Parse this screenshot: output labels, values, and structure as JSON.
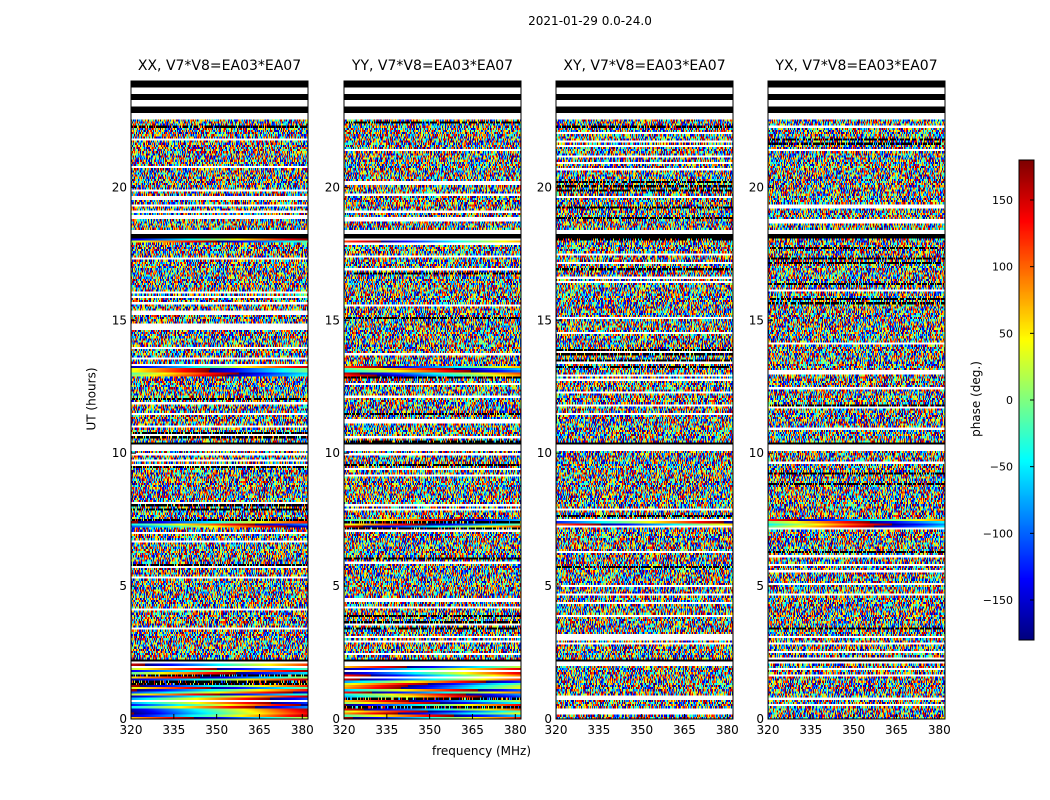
{
  "suptitle": "2021-01-29 0.0-24.0",
  "chart_data": {
    "type": "heatmap",
    "title": "2021-01-29 0.0-24.0",
    "xlabel": "frequency (MHz)",
    "ylabel": "UT (hours)",
    "xlim": [
      320,
      382
    ],
    "ylim": [
      0,
      24
    ],
    "xticks": [
      "320",
      "335",
      "350",
      "365",
      "380"
    ],
    "xtick_values": [
      320,
      335,
      350,
      365,
      380
    ],
    "yticks": [
      "0",
      "5",
      "10",
      "15",
      "20"
    ],
    "ytick_values": [
      0,
      5,
      10,
      15,
      20
    ],
    "colorbar": {
      "label": "phase (deg.)",
      "range": [
        -180,
        180
      ],
      "ticks": [
        "150",
        "100",
        "50",
        "0",
        "−50",
        "−100",
        "−150"
      ],
      "tick_values": [
        150,
        100,
        50,
        0,
        -50,
        -100,
        -150
      ],
      "colormap": "jet"
    },
    "panels": [
      {
        "title": "XX, V7*V8=EA03*EA07",
        "polarization": "XX"
      },
      {
        "title": "YY, V7*V8=EA03*EA07",
        "polarization": "YY"
      },
      {
        "title": "XY, V7*V8=EA03*EA07",
        "polarization": "XY"
      },
      {
        "title": "YX, V7*V8=EA03*EA07",
        "polarization": "YX"
      }
    ],
    "flagged_bands_hours": [
      [
        22.6,
        24.0
      ],
      [
        18.1,
        18.4
      ],
      [
        10.1,
        10.4
      ],
      [
        2.1,
        2.2
      ]
    ],
    "coherent_bands_hours": [
      {
        "pols": [
          "XX",
          "YY"
        ],
        "range": [
          12.9,
          13.3
        ]
      },
      {
        "pols": [
          "XX",
          "YY",
          "XY",
          "YX"
        ],
        "range": [
          7.2,
          7.5
        ]
      },
      {
        "pols": [
          "XX",
          "YY"
        ],
        "range": [
          0.0,
          2.1
        ]
      },
      {
        "pols": [
          "XX",
          "YY"
        ],
        "range": [
          17.9,
          18.2
        ]
      }
    ]
  }
}
